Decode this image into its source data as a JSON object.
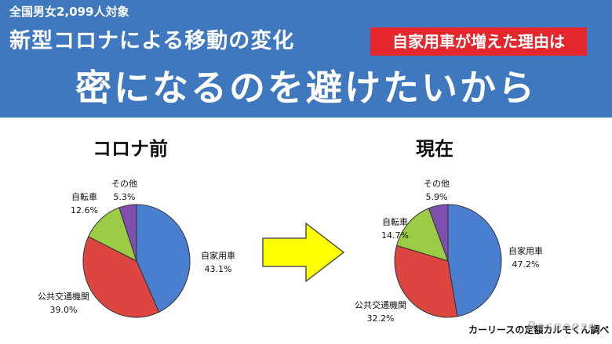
{
  "header": {
    "survey_note": "全国男女2,099人対象",
    "headline": "新型コロナによる移動の変化",
    "reason_badge": "自家用車が増えた理由は",
    "main_message": "密になるのを避けたいから"
  },
  "chart_data": [
    {
      "type": "pie",
      "title": "コロナ前",
      "slices": [
        {
          "label": "自家用車",
          "value": 43.1,
          "value_label": "43.1%"
        },
        {
          "label": "公共交通機関",
          "value": 39.0,
          "value_label": "39.0%"
        },
        {
          "label": "自転車",
          "value": 12.6,
          "value_label": "12.6%"
        },
        {
          "label": "その他",
          "value": 5.3,
          "value_label": "5.3%"
        }
      ]
    },
    {
      "type": "pie",
      "title": "現在",
      "slices": [
        {
          "label": "自家用車",
          "value": 47.2,
          "value_label": "47.2%"
        },
        {
          "label": "公共交通機関",
          "value": 32.2,
          "value_label": "32.2%"
        },
        {
          "label": "自転車",
          "value": 14.7,
          "value_label": "14.7%"
        },
        {
          "label": "その他",
          "value": 5.9,
          "value_label": "5.9%"
        }
      ]
    }
  ],
  "colors": {
    "car": "#4a7fd0",
    "transit": "#dd4540",
    "bicycle": "#9ccc46",
    "other": "#7f4fae",
    "banner": "#3f78bf",
    "badge": "#e5262c",
    "arrow": "#ffff00"
  },
  "footer": {
    "credit": "カーリースの定額カルモくん調べ",
    "watermark": "Response"
  }
}
